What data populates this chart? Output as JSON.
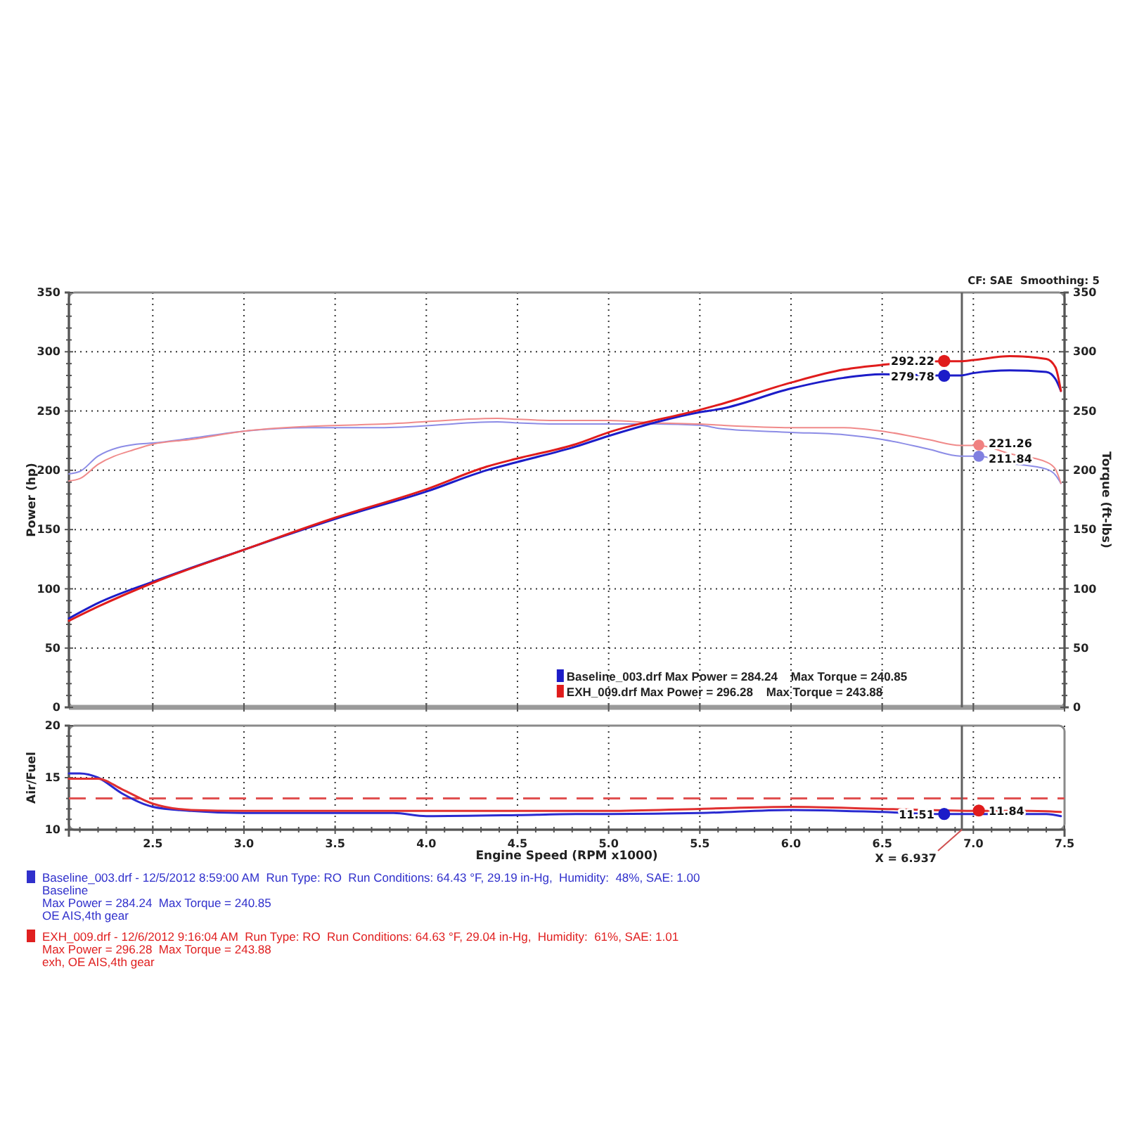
{
  "chart_data": [
    {
      "type": "line",
      "ylabel": "Power (hp)",
      "y2label": "Torque (ft-lbs)",
      "annotations": [
        "CF: SAE  Smoothing: 5"
      ],
      "xlim": [
        2.04,
        7.5
      ],
      "xticks": [
        2.5,
        3,
        3.5,
        4,
        4.5,
        5,
        5.5,
        6,
        6.5,
        7,
        7.5
      ],
      "ylim": [
        0,
        350
      ],
      "yticks": [
        0,
        {
          "value": 10,
          "label": null
        },
        {
          "value": 20,
          "label": null
        },
        {
          "value": 30,
          "label": null
        },
        {
          "value": 40,
          "label": null
        },
        50,
        {
          "value": 60,
          "label": null
        },
        {
          "value": 70,
          "label": null
        },
        {
          "value": 80,
          "label": null
        },
        {
          "value": 90,
          "label": null
        },
        100,
        {
          "value": 110,
          "label": null
        },
        {
          "value": 120,
          "label": null
        },
        {
          "value": 130,
          "label": null
        },
        {
          "value": 140,
          "label": null
        },
        150,
        {
          "value": 160,
          "label": null
        },
        {
          "value": 170,
          "label": null
        },
        {
          "value": 180,
          "label": null
        },
        {
          "value": 190,
          "label": null
        },
        200,
        {
          "value": 210,
          "label": null
        },
        {
          "value": 220,
          "label": null
        },
        {
          "value": 230,
          "label": null
        },
        {
          "value": 240,
          "label": null
        },
        250,
        {
          "value": 260,
          "label": null
        },
        {
          "value": 270,
          "label": null
        },
        {
          "value": 280,
          "label": null
        },
        {
          "value": 290,
          "label": null
        },
        300,
        {
          "value": 310,
          "label": null
        },
        {
          "value": 320,
          "label": null
        },
        {
          "value": 330,
          "label": null
        },
        {
          "value": 340,
          "label": null
        },
        350
      ],
      "y2lim": [
        0,
        350
      ],
      "y2ticks": [
        0,
        {
          "value": 10,
          "label": null
        },
        {
          "value": 20,
          "label": null
        },
        {
          "value": 30,
          "label": null
        },
        {
          "value": 40,
          "label": null
        },
        50,
        {
          "value": 60,
          "label": null
        },
        {
          "value": 70,
          "label": null
        },
        {
          "value": 80,
          "label": null
        },
        {
          "value": 90,
          "label": null
        },
        100,
        {
          "value": 110,
          "label": null
        },
        {
          "value": 120,
          "label": null
        },
        {
          "value": 130,
          "label": null
        },
        {
          "value": 140,
          "label": null
        },
        150,
        {
          "value": 160,
          "label": null
        },
        {
          "value": 170,
          "label": null
        },
        {
          "value": 180,
          "label": null
        },
        {
          "value": 190,
          "label": null
        },
        200,
        {
          "value": 210,
          "label": null
        },
        {
          "value": 220,
          "label": null
        },
        {
          "value": 230,
          "label": null
        },
        {
          "value": 240,
          "label": null
        },
        250,
        {
          "value": 260,
          "label": null
        },
        {
          "value": 270,
          "label": null
        },
        {
          "value": 280,
          "label": null
        },
        {
          "value": 290,
          "label": null
        },
        300,
        {
          "value": 310,
          "label": null
        },
        {
          "value": 320,
          "label": null
        },
        {
          "value": 330,
          "label": null
        },
        {
          "value": 340,
          "label": null
        },
        350
      ],
      "grid": true,
      "legend": "bottom",
      "tick_labels": "y",
      "ref_lines": [
        {
          "axis": "x",
          "value": 6.937,
          "color": "#606060"
        }
      ],
      "series": [
        {
          "color": "#8c8ce6",
          "axis": "y2",
          "x": [
            2.04,
            2.1,
            2.2,
            2.41,
            2.5,
            2.71,
            3.0,
            3.35,
            3.77,
            4.39,
            4.5,
            4.74,
            5.0,
            5.26,
            5.5,
            5.62,
            6.0,
            6.29,
            6.5,
            6.75,
            6.93,
            7.03,
            7.2,
            7.4,
            7.45,
            7.48
          ],
          "values": [
            197,
            199,
            212,
            222,
            223,
            227,
            233,
            236,
            236,
            240.85,
            240,
            239,
            239,
            239,
            238,
            235,
            232,
            230,
            226,
            218,
            212,
            212,
            206,
            201,
            196,
            189
          ]
        },
        {
          "color": "#f08a8a",
          "axis": "y2",
          "x": [
            2.04,
            2.1,
            2.2,
            2.41,
            2.5,
            2.71,
            3.0,
            3.35,
            3.77,
            4.39,
            4.5,
            4.74,
            5.0,
            5.26,
            5.5,
            5.62,
            6.0,
            6.29,
            6.5,
            6.75,
            6.93,
            7.03,
            7.2,
            7.4,
            7.45,
            7.48
          ],
          "values": [
            191,
            193,
            205,
            218,
            222,
            226,
            233,
            237,
            239,
            243.88,
            243,
            242,
            242,
            240,
            239,
            238,
            236,
            236,
            233,
            226,
            221,
            221,
            214,
            207,
            201,
            189
          ]
        },
        {
          "name": "Baseline_003.drf Max Power = 284.24    Max Torque = 240.85",
          "color": "#1c1cc8",
          "x": [
            2.04,
            2.2,
            2.5,
            3.0,
            3.5,
            4.0,
            4.33,
            4.5,
            4.82,
            5.0,
            5.5,
            5.62,
            6.0,
            6.29,
            6.5,
            6.84,
            6.93,
            7.0,
            7.2,
            7.4,
            7.45,
            7.48
          ],
          "values": [
            75,
            88,
            106,
            133,
            159,
            182,
            200,
            207,
            220,
            229,
            249,
            252,
            269,
            278,
            281,
            280,
            280,
            282,
            284.24,
            283,
            277,
            267
          ]
        },
        {
          "name": "EXH_009.drf Max Power = 296.28    Max Torque = 243.88",
          "color": "#e01c1c",
          "x": [
            2.04,
            2.2,
            2.5,
            3.0,
            3.5,
            4.0,
            4.33,
            4.5,
            4.82,
            5.0,
            5.5,
            5.62,
            6.0,
            6.29,
            6.5,
            6.84,
            6.93,
            7.0,
            7.2,
            7.4,
            7.45,
            7.48
          ],
          "values": [
            73,
            85,
            105,
            133,
            160,
            184,
            203,
            210,
            222,
            232,
            251,
            256,
            274,
            285,
            289,
            292,
            292,
            293,
            296.28,
            294,
            287,
            267
          ]
        },
        {
          "type": "scatter",
          "marker": "circle",
          "colors": [
            "#e01c1c",
            "#1c1cc8"
          ],
          "x": [
            6.84,
            6.84
          ],
          "values": [
            292.22,
            279.78
          ],
          "value_labels": [
            "292.22",
            "279.78"
          ]
        },
        {
          "type": "scatter",
          "marker": "circle",
          "axis": "y2",
          "colors": [
            "#f08080",
            "#8080e0"
          ],
          "x": [
            7.03,
            7.03
          ],
          "values": [
            221.26,
            211.84
          ],
          "value_labels": [
            "221.26",
            "211.84"
          ]
        }
      ]
    },
    {
      "type": "line",
      "xlabel": "Engine Speed (RPM x1000)",
      "ylabel": "Air/Fuel",
      "xlim": [
        2.04,
        7.5
      ],
      "xticks": [
        {
          "value": 2.1,
          "label": null
        },
        {
          "value": 2.2,
          "label": null
        },
        {
          "value": 2.3,
          "label": null
        },
        {
          "value": 2.4,
          "label": null
        },
        2.5,
        {
          "value": 2.6,
          "label": null
        },
        {
          "value": 2.7,
          "label": null
        },
        {
          "value": 2.8,
          "label": null
        },
        {
          "value": 2.9,
          "label": null
        },
        {
          "value": 3,
          "label": "3.0"
        },
        {
          "value": 3.1,
          "label": null
        },
        {
          "value": 3.2,
          "label": null
        },
        {
          "value": 3.3,
          "label": null
        },
        {
          "value": 3.4,
          "label": null
        },
        3.5,
        {
          "value": 3.6,
          "label": null
        },
        {
          "value": 3.7,
          "label": null
        },
        {
          "value": 3.8,
          "label": null
        },
        {
          "value": 3.9,
          "label": null
        },
        {
          "value": 4,
          "label": "4.0"
        },
        {
          "value": 4.1,
          "label": null
        },
        {
          "value": 4.2,
          "label": null
        },
        {
          "value": 4.3,
          "label": null
        },
        {
          "value": 4.4,
          "label": null
        },
        4.5,
        {
          "value": 4.6,
          "label": null
        },
        {
          "value": 4.7,
          "label": null
        },
        {
          "value": 4.8,
          "label": null
        },
        {
          "value": 4.9,
          "label": null
        },
        {
          "value": 5,
          "label": "5.0"
        },
        {
          "value": 5.1,
          "label": null
        },
        {
          "value": 5.2,
          "label": null
        },
        {
          "value": 5.3,
          "label": null
        },
        {
          "value": 5.4,
          "label": null
        },
        5.5,
        {
          "value": 5.6,
          "label": null
        },
        {
          "value": 5.7,
          "label": null
        },
        {
          "value": 5.8,
          "label": null
        },
        {
          "value": 5.9,
          "label": null
        },
        {
          "value": 6,
          "label": "6.0"
        },
        {
          "value": 6.1,
          "label": null
        },
        {
          "value": 6.2,
          "label": null
        },
        {
          "value": 6.3,
          "label": null
        },
        {
          "value": 6.4,
          "label": null
        },
        6.5,
        {
          "value": 6.6,
          "label": null
        },
        {
          "value": 6.7,
          "label": null
        },
        {
          "value": 6.8,
          "label": null
        },
        {
          "value": 6.9,
          "label": null
        },
        {
          "value": 7,
          "label": "7.0"
        },
        {
          "value": 7.1,
          "label": null
        },
        {
          "value": 7.2,
          "label": null
        },
        {
          "value": 7.3,
          "label": null
        },
        {
          "value": 7.4,
          "label": null
        },
        7.5
      ],
      "ylim": [
        10,
        20
      ],
      "yticks": [
        10,
        {
          "value": 11,
          "label": null
        },
        {
          "value": 12,
          "label": null
        },
        {
          "value": 13,
          "label": null
        },
        {
          "value": 14,
          "label": null
        },
        15,
        {
          "value": 16,
          "label": null
        },
        {
          "value": 17,
          "label": null
        },
        {
          "value": 18,
          "label": null
        },
        {
          "value": 19,
          "label": null
        },
        20
      ],
      "grid": true,
      "ref_lines": [
        {
          "axis": "y",
          "value": 13,
          "color": "#e05050",
          "line_style": "dashed"
        },
        {
          "axis": "x",
          "value": 6.937,
          "label": "X = 6.937",
          "color": "#606060"
        }
      ],
      "series": [
        {
          "color": "#2a2ad0",
          "x": [
            2.04,
            2.1,
            2.2,
            2.33,
            2.5,
            2.71,
            3.0,
            3.5,
            3.82,
            4.0,
            4.5,
            4.82,
            5.0,
            5.5,
            6.0,
            6.5,
            6.84,
            7.2,
            7.4,
            7.48
          ],
          "values": [
            15.4,
            15.4,
            15.0,
            13.5,
            12.2,
            11.8,
            11.6,
            11.6,
            11.6,
            11.3,
            11.4,
            11.5,
            11.5,
            11.6,
            11.9,
            11.7,
            11.5,
            11.5,
            11.5,
            11.3
          ]
        },
        {
          "color": "#e03030",
          "x": [
            2.04,
            2.1,
            2.2,
            2.33,
            2.5,
            2.71,
            3.0,
            3.5,
            4.0,
            4.5,
            5.0,
            5.5,
            6.0,
            6.5,
            7.03,
            7.3,
            7.48
          ],
          "values": [
            14.9,
            14.9,
            14.9,
            13.9,
            12.5,
            11.9,
            11.8,
            11.8,
            11.8,
            11.8,
            11.8,
            12.0,
            12.2,
            12.0,
            11.8,
            11.8,
            11.7
          ]
        },
        {
          "type": "scatter",
          "marker": "circle",
          "colors": [
            "#1c1cc8",
            "#e01c1c"
          ],
          "x": [
            6.84,
            7.03
          ],
          "values": [
            11.51,
            11.84
          ],
          "value_labels": [
            "11.51",
            "11.84"
          ]
        }
      ]
    },
    {
      "type": "other",
      "annotations": [
        "Baseline_003.drf - 12/5/2012 8:59:00 AM  Run Type: RO  Run Conditions: 64.43 °F, 29.19 in-Hg,  Humidity:  48%, SAE: 1.00",
        "Baseline",
        "Max Power = 284.24  Max Torque = 240.85",
        "OE AIS,4th gear",
        "EXH_009.drf - 12/6/2012 9:16:04 AM  Run Type: RO  Run Conditions: 64.63 °F, 29.04 in-Hg,  Humidity:  61%, SAE: 1.01",
        "Max Power = 296.28  Max Torque = 243.88",
        "exh, OE AIS,4th gear"
      ],
      "colors": [
        "#3030cc",
        "#3030cc",
        "#3030cc",
        "#3030cc",
        "#e02020",
        "#e02020",
        "#e02020"
      ]
    }
  ]
}
